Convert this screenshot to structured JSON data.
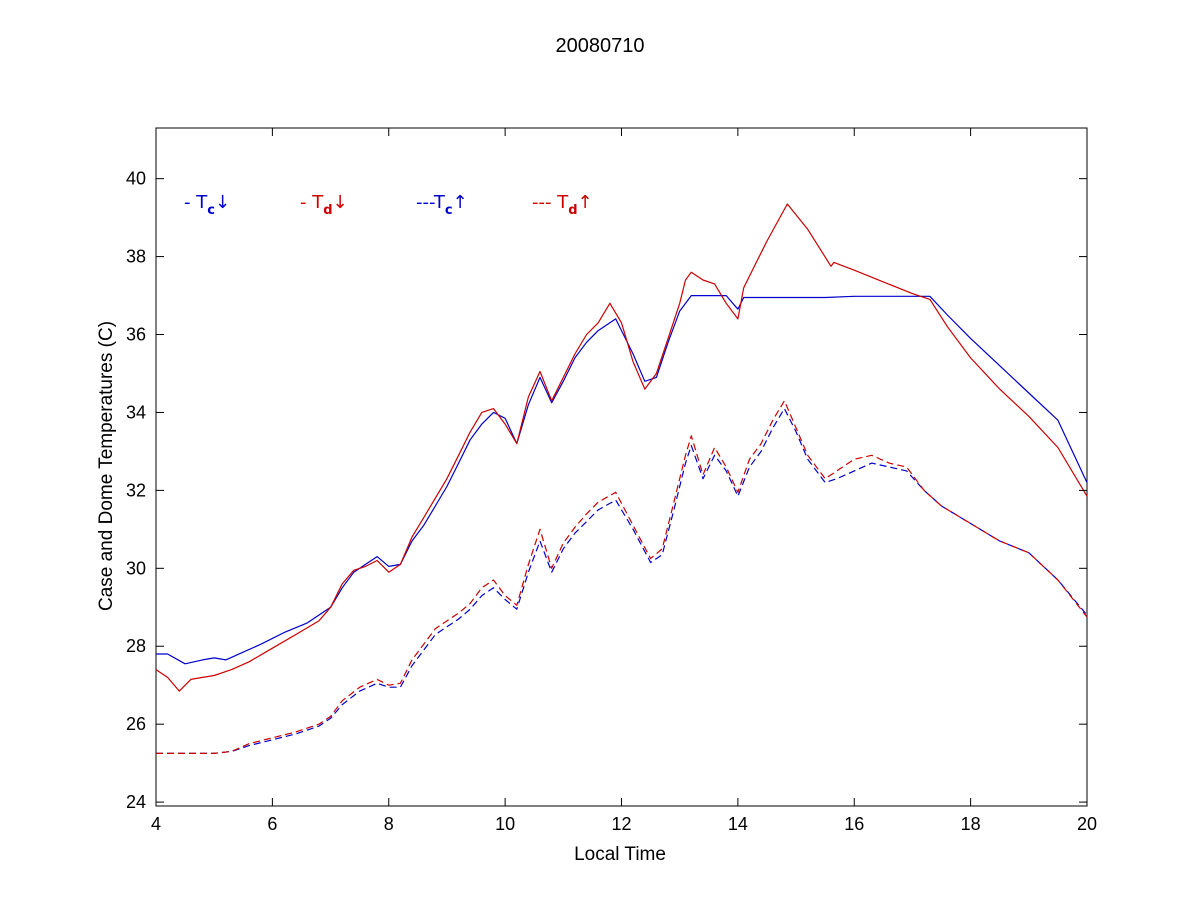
{
  "chart_data": {
    "type": "line",
    "title": "20080710",
    "xlabel": "Local Time",
    "ylabel": "Case and Dome Temperatures (C)",
    "xlim": [
      4,
      20
    ],
    "ylim": [
      23.9,
      41.3
    ],
    "xticks": [
      4,
      6,
      8,
      10,
      12,
      14,
      16,
      18,
      20
    ],
    "yticks": [
      24,
      26,
      28,
      30,
      32,
      34,
      36,
      38,
      40
    ],
    "grid": false,
    "legend_position": "top-left",
    "series": [
      {
        "name": "- T_c↓",
        "legend_prefix": "- T",
        "legend_sub": "c",
        "legend_arrow": "↓",
        "color": "#0000cc",
        "dash": "solid",
        "points": [
          [
            4.0,
            27.8
          ],
          [
            4.2,
            27.8
          ],
          [
            4.5,
            27.55
          ],
          [
            4.8,
            27.65
          ],
          [
            5.0,
            27.7
          ],
          [
            5.2,
            27.65
          ],
          [
            5.5,
            27.85
          ],
          [
            5.8,
            28.05
          ],
          [
            6.2,
            28.35
          ],
          [
            6.6,
            28.6
          ],
          [
            7.0,
            29.0
          ],
          [
            7.2,
            29.5
          ],
          [
            7.4,
            29.9
          ],
          [
            7.6,
            30.1
          ],
          [
            7.8,
            30.3
          ],
          [
            8.0,
            30.05
          ],
          [
            8.2,
            30.1
          ],
          [
            8.4,
            30.7
          ],
          [
            8.6,
            31.1
          ],
          [
            8.8,
            31.6
          ],
          [
            9.0,
            32.1
          ],
          [
            9.2,
            32.7
          ],
          [
            9.4,
            33.3
          ],
          [
            9.6,
            33.7
          ],
          [
            9.8,
            34.0
          ],
          [
            10.0,
            33.85
          ],
          [
            10.2,
            33.2
          ],
          [
            10.4,
            34.2
          ],
          [
            10.6,
            34.9
          ],
          [
            10.8,
            34.25
          ],
          [
            11.0,
            34.8
          ],
          [
            11.2,
            35.4
          ],
          [
            11.4,
            35.8
          ],
          [
            11.6,
            36.1
          ],
          [
            11.9,
            36.4
          ],
          [
            12.2,
            35.5
          ],
          [
            12.4,
            34.8
          ],
          [
            12.6,
            34.9
          ],
          [
            12.8,
            35.8
          ],
          [
            13.0,
            36.6
          ],
          [
            13.2,
            37.0
          ],
          [
            13.5,
            37.0
          ],
          [
            13.8,
            37.0
          ],
          [
            14.0,
            36.65
          ],
          [
            14.1,
            36.95
          ],
          [
            14.5,
            36.95
          ],
          [
            15.0,
            36.95
          ],
          [
            15.5,
            36.95
          ],
          [
            16.0,
            36.98
          ],
          [
            16.5,
            36.98
          ],
          [
            17.0,
            36.98
          ],
          [
            17.3,
            36.98
          ],
          [
            17.6,
            36.5
          ],
          [
            18.0,
            35.9
          ],
          [
            18.5,
            35.2
          ],
          [
            19.0,
            34.5
          ],
          [
            19.5,
            33.8
          ],
          [
            20.0,
            32.2
          ]
        ]
      },
      {
        "name": "- T_d↓",
        "legend_prefix": "- T",
        "legend_sub": "d",
        "legend_arrow": "↓",
        "color": "#cc0000",
        "dash": "solid",
        "points": [
          [
            4.0,
            27.4
          ],
          [
            4.2,
            27.2
          ],
          [
            4.4,
            26.85
          ],
          [
            4.6,
            27.15
          ],
          [
            4.8,
            27.2
          ],
          [
            5.0,
            27.25
          ],
          [
            5.3,
            27.4
          ],
          [
            5.6,
            27.6
          ],
          [
            6.0,
            27.95
          ],
          [
            6.4,
            28.3
          ],
          [
            6.8,
            28.65
          ],
          [
            7.0,
            29.0
          ],
          [
            7.2,
            29.6
          ],
          [
            7.4,
            29.95
          ],
          [
            7.6,
            30.05
          ],
          [
            7.8,
            30.2
          ],
          [
            8.0,
            29.9
          ],
          [
            8.2,
            30.1
          ],
          [
            8.4,
            30.8
          ],
          [
            8.6,
            31.3
          ],
          [
            8.8,
            31.8
          ],
          [
            9.0,
            32.3
          ],
          [
            9.2,
            32.9
          ],
          [
            9.4,
            33.5
          ],
          [
            9.6,
            34.0
          ],
          [
            9.8,
            34.1
          ],
          [
            10.0,
            33.7
          ],
          [
            10.2,
            33.2
          ],
          [
            10.4,
            34.4
          ],
          [
            10.6,
            35.05
          ],
          [
            10.8,
            34.3
          ],
          [
            11.0,
            34.9
          ],
          [
            11.2,
            35.5
          ],
          [
            11.4,
            36.0
          ],
          [
            11.6,
            36.3
          ],
          [
            11.8,
            36.8
          ],
          [
            12.0,
            36.3
          ],
          [
            12.2,
            35.3
          ],
          [
            12.4,
            34.6
          ],
          [
            12.6,
            35.0
          ],
          [
            12.8,
            35.9
          ],
          [
            13.0,
            36.8
          ],
          [
            13.1,
            37.4
          ],
          [
            13.2,
            37.6
          ],
          [
            13.4,
            37.4
          ],
          [
            13.6,
            37.3
          ],
          [
            13.8,
            36.8
          ],
          [
            14.0,
            36.4
          ],
          [
            14.1,
            37.2
          ],
          [
            14.3,
            37.8
          ],
          [
            14.5,
            38.4
          ],
          [
            14.85,
            39.35
          ],
          [
            15.2,
            38.7
          ],
          [
            15.6,
            37.75
          ],
          [
            15.65,
            37.85
          ],
          [
            16.0,
            37.65
          ],
          [
            16.5,
            37.35
          ],
          [
            17.0,
            37.05
          ],
          [
            17.3,
            36.9
          ],
          [
            17.6,
            36.2
          ],
          [
            18.0,
            35.4
          ],
          [
            18.5,
            34.6
          ],
          [
            19.0,
            33.9
          ],
          [
            19.5,
            33.1
          ],
          [
            20.0,
            31.85
          ]
        ]
      },
      {
        "name": "---T_c↑",
        "legend_prefix": "---T",
        "legend_sub": "c",
        "legend_arrow": "↑",
        "color": "#0000cc",
        "dash": "dashed",
        "points": [
          [
            4.0,
            25.25
          ],
          [
            4.5,
            25.25
          ],
          [
            5.0,
            25.25
          ],
          [
            5.3,
            25.3
          ],
          [
            5.6,
            25.45
          ],
          [
            6.0,
            25.6
          ],
          [
            6.4,
            25.75
          ],
          [
            6.8,
            25.95
          ],
          [
            7.0,
            26.15
          ],
          [
            7.2,
            26.5
          ],
          [
            7.5,
            26.85
          ],
          [
            7.8,
            27.05
          ],
          [
            8.0,
            26.95
          ],
          [
            8.2,
            26.95
          ],
          [
            8.4,
            27.5
          ],
          [
            8.6,
            27.9
          ],
          [
            8.8,
            28.3
          ],
          [
            9.0,
            28.5
          ],
          [
            9.2,
            28.7
          ],
          [
            9.4,
            28.95
          ],
          [
            9.6,
            29.3
          ],
          [
            9.8,
            29.5
          ],
          [
            10.0,
            29.2
          ],
          [
            10.2,
            28.95
          ],
          [
            10.4,
            29.9
          ],
          [
            10.6,
            30.7
          ],
          [
            10.8,
            29.9
          ],
          [
            11.0,
            30.5
          ],
          [
            11.2,
            30.9
          ],
          [
            11.4,
            31.2
          ],
          [
            11.6,
            31.5
          ],
          [
            11.9,
            31.75
          ],
          [
            12.2,
            31.0
          ],
          [
            12.5,
            30.15
          ],
          [
            12.7,
            30.35
          ],
          [
            12.9,
            31.5
          ],
          [
            13.1,
            32.7
          ],
          [
            13.2,
            33.15
          ],
          [
            13.4,
            32.3
          ],
          [
            13.6,
            32.9
          ],
          [
            13.8,
            32.5
          ],
          [
            14.0,
            31.85
          ],
          [
            14.2,
            32.6
          ],
          [
            14.4,
            33.0
          ],
          [
            14.6,
            33.6
          ],
          [
            14.8,
            34.1
          ],
          [
            15.0,
            33.5
          ],
          [
            15.2,
            32.8
          ],
          [
            15.5,
            32.2
          ],
          [
            15.7,
            32.3
          ],
          [
            16.0,
            32.5
          ],
          [
            16.3,
            32.7
          ],
          [
            16.6,
            32.6
          ],
          [
            16.9,
            32.5
          ],
          [
            17.2,
            32.0
          ],
          [
            17.5,
            31.6
          ],
          [
            18.0,
            31.15
          ],
          [
            18.5,
            30.7
          ],
          [
            19.0,
            30.4
          ],
          [
            19.5,
            29.7
          ],
          [
            20.0,
            28.8
          ]
        ]
      },
      {
        "name": "--- T_d↑",
        "legend_prefix": "--- T",
        "legend_sub": "d",
        "legend_arrow": "↑",
        "color": "#cc0000",
        "dash": "dashed",
        "points": [
          [
            4.0,
            25.25
          ],
          [
            4.5,
            25.25
          ],
          [
            5.0,
            25.25
          ],
          [
            5.3,
            25.3
          ],
          [
            5.6,
            25.5
          ],
          [
            6.0,
            25.65
          ],
          [
            6.4,
            25.8
          ],
          [
            6.8,
            26.0
          ],
          [
            7.0,
            26.2
          ],
          [
            7.2,
            26.6
          ],
          [
            7.5,
            26.95
          ],
          [
            7.8,
            27.15
          ],
          [
            8.0,
            27.0
          ],
          [
            8.2,
            27.05
          ],
          [
            8.4,
            27.65
          ],
          [
            8.6,
            28.05
          ],
          [
            8.8,
            28.45
          ],
          [
            9.0,
            28.65
          ],
          [
            9.2,
            28.85
          ],
          [
            9.4,
            29.1
          ],
          [
            9.6,
            29.5
          ],
          [
            9.8,
            29.7
          ],
          [
            10.0,
            29.3
          ],
          [
            10.2,
            29.05
          ],
          [
            10.4,
            30.1
          ],
          [
            10.6,
            31.0
          ],
          [
            10.8,
            30.0
          ],
          [
            11.0,
            30.65
          ],
          [
            11.2,
            31.05
          ],
          [
            11.4,
            31.4
          ],
          [
            11.6,
            31.7
          ],
          [
            11.9,
            31.95
          ],
          [
            12.2,
            31.1
          ],
          [
            12.5,
            30.25
          ],
          [
            12.7,
            30.5
          ],
          [
            12.9,
            31.7
          ],
          [
            13.1,
            32.9
          ],
          [
            13.2,
            33.4
          ],
          [
            13.4,
            32.4
          ],
          [
            13.6,
            33.1
          ],
          [
            13.8,
            32.6
          ],
          [
            14.0,
            31.95
          ],
          [
            14.2,
            32.8
          ],
          [
            14.4,
            33.2
          ],
          [
            14.6,
            33.8
          ],
          [
            14.8,
            34.3
          ],
          [
            15.0,
            33.6
          ],
          [
            15.2,
            32.9
          ],
          [
            15.5,
            32.3
          ],
          [
            15.7,
            32.5
          ],
          [
            16.0,
            32.8
          ],
          [
            16.3,
            32.9
          ],
          [
            16.6,
            32.7
          ],
          [
            16.9,
            32.6
          ],
          [
            17.2,
            32.0
          ],
          [
            17.5,
            31.6
          ],
          [
            18.0,
            31.15
          ],
          [
            18.5,
            30.7
          ],
          [
            19.0,
            30.4
          ],
          [
            19.5,
            29.7
          ],
          [
            20.0,
            28.75
          ]
        ]
      }
    ]
  }
}
